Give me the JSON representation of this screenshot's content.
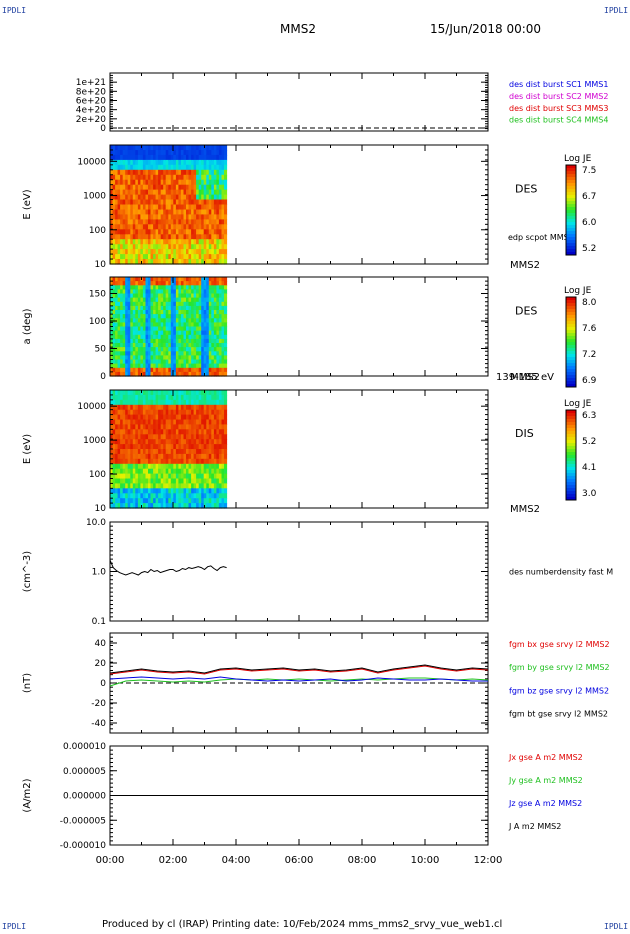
{
  "corner_label": "IPDLI",
  "header": {
    "spacecraft": "MMS2",
    "date": "15/Jun/2018 00:00"
  },
  "footer": {
    "text": "Produced by cl (IRAP)   Printing date: 10/Feb/2024   mms_mms2_srvy_vue_web1.cl"
  },
  "colors": {
    "red": "#e00000",
    "magenta": "#d000d0",
    "green": "#20c020",
    "blue": "#0000e0",
    "black": "#000000"
  },
  "chart_data": [
    {
      "type": "line",
      "id": "panel-burst",
      "ylim": [
        0,
        1.2e+21
      ],
      "ytick_labels": [
        "1e+21",
        "8e+20",
        "6e+20",
        "4e+20",
        "2e+20",
        "0"
      ],
      "ytick_values": [
        1e+21,
        8e+20,
        6e+20,
        4e+20,
        2e+20,
        0
      ],
      "legend": [
        {
          "name": "des dist burst SC1 MMS1",
          "color": "#0000e0"
        },
        {
          "name": "des dist burst SC2 MMS2",
          "color": "#d000d0"
        },
        {
          "name": "des dist burst SC3 MMS3",
          "color": "#e00000"
        },
        {
          "name": "des dist burst SC4 MMS4",
          "color": "#20c020"
        }
      ],
      "series": []
    },
    {
      "type": "heatmap",
      "id": "panel-des-energy",
      "ylabel": "E (eV)",
      "yscale": "log",
      "ylim": [
        10,
        30000
      ],
      "ytick_labels": [
        "10000",
        "1000",
        "100",
        "10"
      ],
      "ytick_values": [
        10000,
        1000,
        100,
        10
      ],
      "x_range_hours": [
        0,
        3.7
      ],
      "label": "DES",
      "note": "edp scpot MMS2",
      "sc_label": "MMS2",
      "colorbar": {
        "title": "Log JE",
        "ticks": [
          "7.5",
          "6.7",
          "6.0",
          "5.2"
        ],
        "range": [
          5.2,
          7.6
        ]
      }
    },
    {
      "type": "heatmap",
      "id": "panel-des-pitch",
      "ylabel": "a (deg)",
      "ylim": [
        0,
        180
      ],
      "ytick_labels": [
        "150",
        "100",
        "50",
        "0"
      ],
      "ytick_values": [
        150,
        100,
        50,
        0
      ],
      "x_range_hours": [
        0,
        3.7
      ],
      "label": "DES",
      "sc_label": "MMS2",
      "energy_label": "139-185 eV",
      "colorbar": {
        "title": "Log JE",
        "ticks": [
          "8.0",
          "7.6",
          "7.2",
          "6.9"
        ],
        "range": [
          6.9,
          8.1
        ]
      }
    },
    {
      "type": "heatmap",
      "id": "panel-dis-energy",
      "ylabel": "E (eV)",
      "yscale": "log",
      "ylim": [
        10,
        30000
      ],
      "ytick_labels": [
        "10000",
        "1000",
        "100",
        "10"
      ],
      "ytick_values": [
        10000,
        1000,
        100,
        10
      ],
      "x_range_hours": [
        0,
        3.7
      ],
      "label": "DIS",
      "sc_label": "MMS2",
      "colorbar": {
        "title": "Log JE",
        "ticks": [
          "6.3",
          "5.2",
          "4.1",
          "3.0"
        ],
        "range": [
          3.0,
          6.5
        ]
      }
    },
    {
      "type": "line",
      "id": "panel-density",
      "ylabel": "(cm^-3)",
      "yscale": "log",
      "ylim": [
        0.1,
        10
      ],
      "ytick_labels": [
        "10.0",
        "1.0",
        "0.1"
      ],
      "ytick_values": [
        10,
        1,
        0.1
      ],
      "legend": [
        {
          "name": "des numberdensity fast M",
          "color": "#000000"
        }
      ],
      "series": [
        {
          "name": "des numberdensity fast M",
          "color": "#000000",
          "x": [
            0.0,
            0.1,
            0.2,
            0.3,
            0.4,
            0.5,
            0.6,
            0.7,
            0.8,
            0.9,
            1.0,
            1.1,
            1.2,
            1.3,
            1.4,
            1.5,
            1.6,
            1.7,
            1.8,
            1.9,
            2.0,
            2.1,
            2.2,
            2.3,
            2.4,
            2.5,
            2.6,
            2.7,
            2.8,
            2.9,
            3.0,
            3.1,
            3.2,
            3.3,
            3.4,
            3.5,
            3.6,
            3.7
          ],
          "y": [
            1.7,
            1.2,
            1.05,
            0.95,
            0.9,
            0.85,
            0.9,
            0.95,
            0.9,
            0.85,
            0.95,
            1.0,
            0.95,
            1.1,
            1.0,
            1.05,
            0.95,
            1.0,
            1.05,
            1.1,
            1.1,
            1.0,
            1.05,
            1.15,
            1.1,
            1.2,
            1.15,
            1.2,
            1.25,
            1.2,
            1.1,
            1.25,
            1.3,
            1.15,
            1.05,
            1.2,
            1.25,
            1.2
          ]
        }
      ]
    },
    {
      "type": "line",
      "id": "panel-bfield",
      "ylabel": "(nT)",
      "ylim": [
        -50,
        50
      ],
      "ytick_labels": [
        "40",
        "20",
        "0",
        "-20",
        "-40"
      ],
      "ytick_values": [
        40,
        20,
        0,
        -20,
        -40
      ],
      "legend": [
        {
          "name": "fgm bx gse srvy l2 MMS2",
          "color": "#e00000"
        },
        {
          "name": "fgm by gse srvy l2 MMS2",
          "color": "#20c020"
        },
        {
          "name": "fgm bz gse srvy l2 MMS2",
          "color": "#0000e0"
        },
        {
          "name": "fgm bt gse srvy l2 MMS2",
          "color": "#000000"
        }
      ],
      "series": [
        {
          "name": "fgm bx gse srvy l2 MMS2",
          "color": "#e00000",
          "x": [
            0,
            0.5,
            1,
            1.5,
            2,
            2.5,
            3,
            3.5,
            4,
            4.5,
            5,
            5.5,
            6,
            6.5,
            7,
            7.5,
            8,
            8.5,
            9,
            9.5,
            10,
            10.5,
            11,
            11.5,
            12
          ],
          "y": [
            9,
            11,
            13,
            11,
            10,
            11,
            9,
            13,
            14,
            12,
            13,
            14,
            12,
            13,
            11,
            12,
            14,
            10,
            13,
            15,
            17,
            14,
            12,
            14,
            13
          ]
        },
        {
          "name": "fgm by gse srvy l2 MMS2",
          "color": "#20c020",
          "x": [
            0,
            0.5,
            1,
            1.5,
            2,
            2.5,
            3,
            3.5,
            4,
            4.5,
            5,
            5.5,
            6,
            6.5,
            7,
            7.5,
            8,
            8.5,
            9,
            9.5,
            10,
            10.5,
            11,
            11.5,
            12
          ],
          "y": [
            -3,
            2,
            3,
            2,
            1,
            2,
            1,
            3,
            4,
            3,
            4,
            3,
            4,
            3,
            2,
            3,
            4,
            3,
            4,
            5,
            5,
            4,
            3,
            4,
            3
          ]
        },
        {
          "name": "fgm bz gse srvy l2 MMS2",
          "color": "#0000e0",
          "x": [
            0,
            0.5,
            1,
            1.5,
            2,
            2.5,
            3,
            3.5,
            4,
            4.5,
            5,
            5.5,
            6,
            6.5,
            7,
            7.5,
            8,
            8.5,
            9,
            9.5,
            10,
            10.5,
            11,
            11.5,
            12
          ],
          "y": [
            4,
            5,
            6,
            5,
            4,
            5,
            4,
            6,
            4,
            3,
            2,
            3,
            2,
            3,
            4,
            2,
            3,
            5,
            4,
            3,
            3,
            4,
            3,
            2,
            2
          ]
        },
        {
          "name": "fgm bt gse srvy l2 MMS2",
          "color": "#000000",
          "x": [
            0,
            0.5,
            1,
            1.5,
            2,
            2.5,
            3,
            3.5,
            4,
            4.5,
            5,
            5.5,
            6,
            6.5,
            7,
            7.5,
            8,
            8.5,
            9,
            9.5,
            10,
            10.5,
            11,
            11.5,
            12
          ],
          "y": [
            10,
            12,
            14,
            12,
            11,
            12,
            10,
            14,
            15,
            13,
            14,
            15,
            13,
            14,
            12,
            13,
            15,
            11,
            14,
            16,
            18,
            15,
            13,
            15,
            14
          ]
        }
      ]
    },
    {
      "type": "line",
      "id": "panel-current",
      "ylabel": "(A/m2)",
      "ylim": [
        -1e-05,
        1e-05
      ],
      "ytick_labels": [
        "0.000010",
        "0.000005",
        "0.000000",
        "-0.000005",
        "-0.000010"
      ],
      "ytick_values": [
        1e-05,
        5e-06,
        0,
        -5e-06,
        -1e-05
      ],
      "legend": [
        {
          "name": "Jx gse A m2 MMS2",
          "color": "#e00000"
        },
        {
          "name": "Jy gse A m2 MMS2",
          "color": "#20c020"
        },
        {
          "name": "Jz gse A m2 MMS2",
          "color": "#0000e0"
        },
        {
          "name": "J A m2 MMS2",
          "color": "#000000"
        }
      ],
      "xtick_labels": [
        "00:00",
        "02:00",
        "04:00",
        "06:00",
        "08:00",
        "10:00",
        "12:00"
      ],
      "xtick_values": [
        0,
        2,
        4,
        6,
        8,
        10,
        12
      ],
      "xlim": [
        0,
        12
      ],
      "series": [
        {
          "name": "J A m2 MMS2",
          "color": "#000000",
          "x": [
            0,
            1,
            2,
            3,
            4,
            5,
            6,
            7,
            8,
            9,
            10,
            11,
            12
          ],
          "y": [
            0,
            0,
            0,
            0,
            0,
            0,
            0,
            0,
            0,
            0,
            0,
            0,
            0
          ]
        }
      ]
    }
  ]
}
